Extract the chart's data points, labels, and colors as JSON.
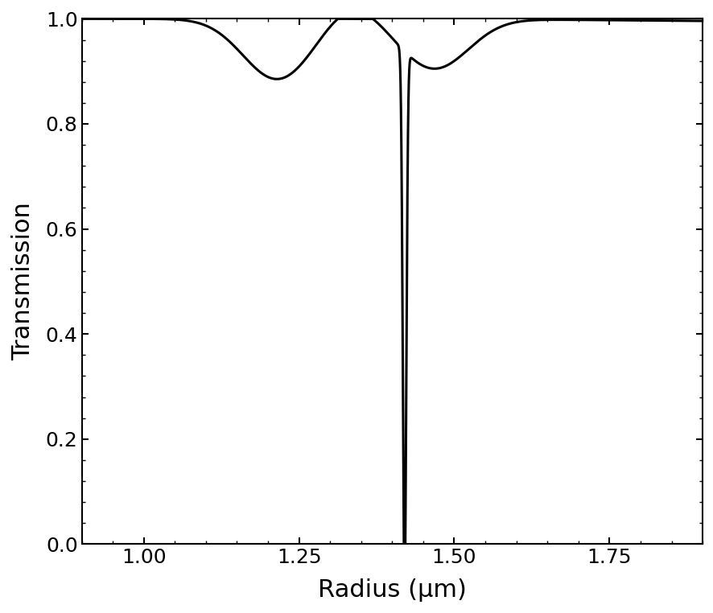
{
  "xlabel": "Radius (μm)",
  "ylabel": "Transmission",
  "xlim": [
    0.9,
    1.9
  ],
  "ylim": [
    0.0,
    1.0
  ],
  "xticks": [
    1.0,
    1.25,
    1.5,
    1.75
  ],
  "yticks": [
    0.0,
    0.2,
    0.4,
    0.6,
    0.8,
    1.0
  ],
  "line_color": "#000000",
  "line_width": 2.2,
  "background_color": "#ffffff",
  "xlabel_fontsize": 22,
  "ylabel_fontsize": 22,
  "tick_fontsize": 18
}
